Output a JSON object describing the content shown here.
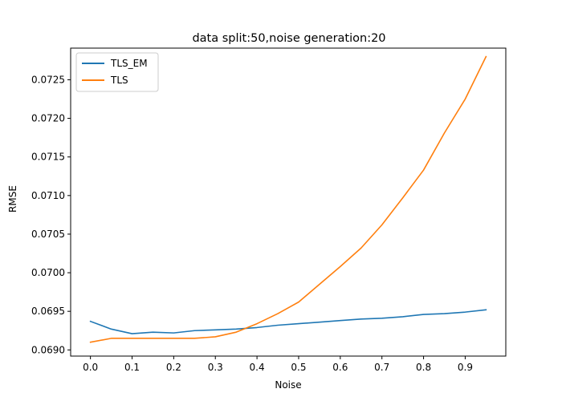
{
  "chart_data": {
    "type": "line",
    "title": "data split:50,noise generation:20",
    "xlabel": "Noise",
    "ylabel": "RMSE",
    "xlim": [
      -0.0475,
      0.9975
    ],
    "ylim": [
      0.06892,
      0.07291
    ],
    "xticks": [
      0.0,
      0.1,
      0.2,
      0.3,
      0.4,
      0.5,
      0.6,
      0.7,
      0.8,
      0.9
    ],
    "xtick_labels": [
      "0.0",
      "0.1",
      "0.2",
      "0.3",
      "0.4",
      "0.5",
      "0.6",
      "0.7",
      "0.8",
      "0.9"
    ],
    "yticks": [
      0.069,
      0.0695,
      0.07,
      0.0705,
      0.071,
      0.0715,
      0.072,
      0.0725
    ],
    "ytick_labels": [
      "0.0690",
      "0.0695",
      "0.0700",
      "0.0705",
      "0.0710",
      "0.0715",
      "0.0720",
      "0.0725"
    ],
    "legend_position": "top-left",
    "grid": false,
    "x": [
      0.0,
      0.05,
      0.1,
      0.15,
      0.2,
      0.25,
      0.3,
      0.35,
      0.4,
      0.45,
      0.5,
      0.55,
      0.6,
      0.65,
      0.7,
      0.75,
      0.8,
      0.85,
      0.9,
      0.95
    ],
    "series": [
      {
        "name": "TLS_EM",
        "color": "#1f77b4",
        "values": [
          0.06937,
          0.06927,
          0.06921,
          0.06923,
          0.06922,
          0.06925,
          0.06926,
          0.06927,
          0.06929,
          0.06932,
          0.06934,
          0.06936,
          0.06938,
          0.0694,
          0.06941,
          0.06943,
          0.06946,
          0.06947,
          0.06949,
          0.06952
        ]
      },
      {
        "name": "TLS",
        "color": "#ff7f0e",
        "values": [
          0.0691,
          0.06915,
          0.06915,
          0.06915,
          0.06915,
          0.06915,
          0.06917,
          0.06923,
          0.06934,
          0.06947,
          0.06962,
          0.06985,
          0.07008,
          0.07032,
          0.07062,
          0.07097,
          0.07133,
          0.07181,
          0.07225,
          0.0728
        ]
      }
    ]
  }
}
